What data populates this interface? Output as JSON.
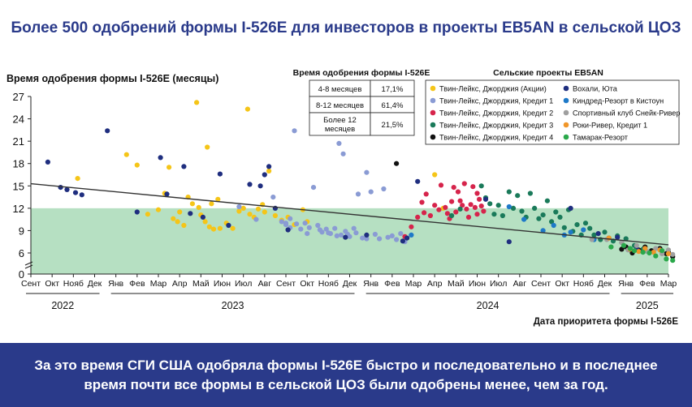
{
  "title": "Более 500 одобрений формы I-526E для инвесторов в проекты EB5AN в сельской ЦОЗ",
  "footer_text": "За это время СГИ США одобряла формы I-526E быстро и последовательно и в последнее время почти все формы в сельской ЦОЗ были одобрены менее, чем за год.",
  "colors": {
    "header_blue": "#2a3a8a",
    "shade": "#b6e0c2",
    "trend": "#333333"
  },
  "table": {
    "title": "Время одобрения формы I-526E",
    "rows": [
      {
        "label": "4-8 месяцев",
        "value": "17,1%"
      },
      {
        "label": "8-12 месяцев",
        "value": "61,4%"
      },
      {
        "label": "Более 12 месяцев",
        "value": "21,5%"
      }
    ]
  },
  "chart_data": {
    "type": "scatter",
    "ylabel": "Время одобрения формы I-526E (месяцы)",
    "xlabel": "Дата приоритета формы I-526E",
    "legend_title": "Сельские проекты EB5AN",
    "legend_position": "top-right",
    "yticks": [
      0,
      6,
      9,
      12,
      15,
      18,
      21,
      24,
      27
    ],
    "ylim": [
      4,
      27
    ],
    "axis_break": true,
    "shaded_band": [
      4,
      12
    ],
    "months": [
      "Сент",
      "Окт",
      "Нояб",
      "Дек",
      "Янв",
      "Фев",
      "Мар",
      "Апр",
      "Май",
      "Июн",
      "Июл",
      "Авг",
      "Сент",
      "Окт",
      "Нояб",
      "Дек",
      "Янв",
      "Фев",
      "Мар",
      "Апр",
      "Май",
      "Июн",
      "Июл",
      "Авг",
      "Сент",
      "Окт",
      "Нояб",
      "Дек",
      "Янв",
      "Фев",
      "Мар"
    ],
    "years": [
      {
        "label": "2022",
        "from": 0,
        "to": 3
      },
      {
        "label": "2023",
        "from": 4,
        "to": 15
      },
      {
        "label": "2024",
        "from": 16,
        "to": 27
      },
      {
        "label": "2025",
        "from": 28,
        "to": 30
      }
    ],
    "trend": {
      "x": [
        0.0,
        30.0
      ],
      "y": [
        15.3,
        7.1
      ]
    },
    "series": [
      {
        "name": "Твин-Лейкс, Джорджия (Акции)",
        "color": "#f5c518",
        "points": [
          [
            2.2,
            16
          ],
          [
            4.5,
            19.2
          ],
          [
            5.0,
            17.8
          ],
          [
            5.5,
            11.2
          ],
          [
            6.0,
            11.8
          ],
          [
            6.3,
            14.0
          ],
          [
            6.5,
            17.5
          ],
          [
            6.7,
            10.6
          ],
          [
            6.9,
            10.2
          ],
          [
            7.0,
            11.5
          ],
          [
            7.2,
            9.7
          ],
          [
            7.4,
            13.5
          ],
          [
            7.6,
            12.6
          ],
          [
            7.8,
            26.2
          ],
          [
            7.9,
            12.1
          ],
          [
            8.0,
            11.1
          ],
          [
            8.2,
            10.2
          ],
          [
            8.3,
            20.2
          ],
          [
            8.4,
            9.5
          ],
          [
            8.5,
            12.6
          ],
          [
            8.6,
            9.2
          ],
          [
            8.8,
            13.2
          ],
          [
            8.9,
            9.3
          ],
          [
            9.2,
            10.0
          ],
          [
            9.5,
            9.3
          ],
          [
            9.8,
            11.6
          ],
          [
            10.0,
            12.0
          ],
          [
            10.2,
            25.3
          ],
          [
            10.3,
            11.2
          ],
          [
            10.5,
            10.8
          ],
          [
            10.7,
            11.9
          ],
          [
            10.9,
            12.5
          ],
          [
            11.0,
            11.5
          ],
          [
            11.2,
            17.0
          ],
          [
            11.5,
            11.0
          ],
          [
            11.8,
            10.4
          ],
          [
            12.1,
            10.8
          ],
          [
            12.4,
            9.8
          ],
          [
            12.8,
            11.8
          ],
          [
            13.0,
            10.2
          ],
          [
            19.0,
            16.5
          ],
          [
            19.4,
            12.0
          ]
        ]
      },
      {
        "name": "Твин-Лейкс, Джорджия, Кредит 1",
        "color": "#8a9bd4",
        "points": [
          [
            9.8,
            12.2
          ],
          [
            10.6,
            10.5
          ],
          [
            11.4,
            13.5
          ],
          [
            11.8,
            10.2
          ],
          [
            12.0,
            9.8
          ],
          [
            12.2,
            10.6
          ],
          [
            12.4,
            22.4
          ],
          [
            12.5,
            9.9
          ],
          [
            12.7,
            9.2
          ],
          [
            12.9,
            10.0
          ],
          [
            13.1,
            9.4
          ],
          [
            13.3,
            14.8
          ],
          [
            13.5,
            9.7
          ],
          [
            13.7,
            8.8
          ],
          [
            13.9,
            9.2
          ],
          [
            14.1,
            8.6
          ],
          [
            14.3,
            9.3
          ],
          [
            14.5,
            20.7
          ],
          [
            14.6,
            8.4
          ],
          [
            14.7,
            19.3
          ],
          [
            14.8,
            8.9
          ],
          [
            15.0,
            8.2
          ],
          [
            15.2,
            9.3
          ],
          [
            15.4,
            13.9
          ],
          [
            15.6,
            8.0
          ],
          [
            15.8,
            16.8
          ],
          [
            16.0,
            14.2
          ],
          [
            16.2,
            8.5
          ],
          [
            16.4,
            7.9
          ],
          [
            16.6,
            14.6
          ],
          [
            16.8,
            8.1
          ],
          [
            17.0,
            8.3
          ],
          [
            17.2,
            7.8
          ],
          [
            17.4,
            8.6
          ],
          [
            17.6,
            7.5
          ],
          [
            12.0,
            10.0
          ],
          [
            12.2,
            9.4
          ],
          [
            13.0,
            8.6
          ],
          [
            13.6,
            9.1
          ],
          [
            14.0,
            8.7
          ],
          [
            14.4,
            8.3
          ],
          [
            14.9,
            8.5
          ],
          [
            15.3,
            8.7
          ],
          [
            15.8,
            7.9
          ]
        ]
      },
      {
        "name": "Твин-Лейкс, Джорджия, Кредит 2",
        "color": "#d6244b",
        "points": [
          [
            17.6,
            8.2
          ],
          [
            17.9,
            9.5
          ],
          [
            18.2,
            10.8
          ],
          [
            18.4,
            12.8
          ],
          [
            18.5,
            11.4
          ],
          [
            18.6,
            13.9
          ],
          [
            18.8,
            11.0
          ],
          [
            19.0,
            12.4
          ],
          [
            19.2,
            11.8
          ],
          [
            19.3,
            15.1
          ],
          [
            19.5,
            12.1
          ],
          [
            19.6,
            11.3
          ],
          [
            19.7,
            10.6
          ],
          [
            19.8,
            12.9
          ],
          [
            19.9,
            14.8
          ],
          [
            20.0,
            11.5
          ],
          [
            20.1,
            14.2
          ],
          [
            20.2,
            13.0
          ],
          [
            20.3,
            12.4
          ],
          [
            20.4,
            15.3
          ],
          [
            20.5,
            11.9
          ],
          [
            20.6,
            10.8
          ],
          [
            20.7,
            12.5
          ],
          [
            20.8,
            14.9
          ],
          [
            20.9,
            12.1
          ],
          [
            21.0,
            11.2
          ],
          [
            21.1,
            13.2
          ],
          [
            21.2,
            12.3
          ],
          [
            21.3,
            11.6
          ],
          [
            21.0,
            14.0
          ]
        ]
      },
      {
        "name": "Твин-Лейкс, Джорджия, Кредит 3",
        "color": "#1a7a5a",
        "points": [
          [
            19.8,
            11.0
          ],
          [
            20.2,
            11.9
          ],
          [
            21.2,
            15.0
          ],
          [
            21.4,
            13.4
          ],
          [
            21.6,
            12.6
          ],
          [
            21.8,
            11.2
          ],
          [
            22.0,
            12.4
          ],
          [
            22.2,
            11.0
          ],
          [
            22.5,
            14.2
          ],
          [
            22.7,
            12.0
          ],
          [
            22.9,
            13.7
          ],
          [
            23.1,
            11.6
          ],
          [
            23.3,
            10.8
          ],
          [
            23.5,
            14.0
          ],
          [
            23.7,
            12.0
          ],
          [
            23.9,
            10.6
          ],
          [
            24.1,
            11.1
          ],
          [
            24.3,
            13.0
          ],
          [
            24.5,
            10.2
          ],
          [
            24.7,
            11.5
          ],
          [
            24.9,
            10.8
          ],
          [
            25.1,
            9.4
          ],
          [
            25.3,
            11.8
          ],
          [
            25.5,
            8.9
          ],
          [
            25.7,
            9.8
          ],
          [
            25.9,
            8.4
          ],
          [
            26.1,
            10.0
          ],
          [
            26.3,
            9.3
          ],
          [
            26.5,
            8.4
          ],
          [
            26.8,
            7.8
          ],
          [
            27.0,
            8.8
          ],
          [
            27.2,
            8.0
          ],
          [
            27.4,
            7.6
          ],
          [
            27.6,
            8.3
          ],
          [
            27.8,
            7.4
          ],
          [
            28.0,
            7.9
          ],
          [
            28.4,
            7.0
          ],
          [
            28.8,
            6.5
          ]
        ]
      },
      {
        "name": "Твин-Лейкс, Джорджия, Кредит 4",
        "color": "#111111",
        "points": [
          [
            17.2,
            18.0
          ],
          [
            28.0,
            6.8
          ],
          [
            28.6,
            6.4
          ],
          [
            28.9,
            6.8
          ],
          [
            29.2,
            6.3
          ],
          [
            29.6,
            6.6
          ],
          [
            29.9,
            5.9
          ],
          [
            30.2,
            5.5
          ],
          [
            30.0,
            6.1
          ],
          [
            28.3,
            6.0
          ],
          [
            27.8,
            6.5
          ]
        ]
      },
      {
        "name": "Вохали, Юта",
        "color": "#1f2e7f",
        "points": [
          [
            0.8,
            18.2
          ],
          [
            1.4,
            14.8
          ],
          [
            1.7,
            14.5
          ],
          [
            2.1,
            14.1
          ],
          [
            2.4,
            13.8
          ],
          [
            3.6,
            22.4
          ],
          [
            5.0,
            11.5
          ],
          [
            6.1,
            18.8
          ],
          [
            6.4,
            13.9
          ],
          [
            7.2,
            17.6
          ],
          [
            7.5,
            11.3
          ],
          [
            8.1,
            10.8
          ],
          [
            8.9,
            16.6
          ],
          [
            9.3,
            9.7
          ],
          [
            10.3,
            15.2
          ],
          [
            10.8,
            15.0
          ],
          [
            11.0,
            16.5
          ],
          [
            11.2,
            17.6
          ],
          [
            11.5,
            12.0
          ],
          [
            12.1,
            9.1
          ],
          [
            14.8,
            8.1
          ],
          [
            15.8,
            8.4
          ],
          [
            17.5,
            7.6
          ],
          [
            17.7,
            8.0
          ],
          [
            18.2,
            15.6
          ],
          [
            21.4,
            13.2
          ],
          [
            22.5,
            7.5
          ],
          [
            25.4,
            12.0
          ],
          [
            26.7,
            8.6
          ],
          [
            27.6,
            8.1
          ],
          [
            28.5,
            6.5
          ]
        ]
      },
      {
        "name": "Киндред-Резорт в Кистоун",
        "color": "#1e79c8",
        "points": [
          [
            17.9,
            8.4
          ],
          [
            22.5,
            12.2
          ],
          [
            23.2,
            10.5
          ],
          [
            24.1,
            9.0
          ],
          [
            24.6,
            9.7
          ],
          [
            25.1,
            8.4
          ],
          [
            25.4,
            8.8
          ],
          [
            26.0,
            9.1
          ],
          [
            26.5,
            7.8
          ]
        ]
      },
      {
        "name": "Спортивный клуб Снейк-Ривер",
        "color": "#9f9f9f",
        "points": [
          [
            26.4,
            7.8
          ],
          [
            27.1,
            7.8
          ],
          [
            27.8,
            7.4
          ],
          [
            28.1,
            6.4
          ],
          [
            28.5,
            7.0
          ],
          [
            29.0,
            6.2
          ],
          [
            29.4,
            6.6
          ],
          [
            29.7,
            5.9
          ],
          [
            30.0,
            6.4
          ],
          [
            30.2,
            5.8
          ]
        ]
      },
      {
        "name": "Роки-Ривер, Кредит 1",
        "color": "#f0962a",
        "points": [
          [
            27.2,
            8.0
          ],
          [
            28.2,
            6.5
          ],
          [
            28.6,
            6.2
          ],
          [
            28.9,
            6.6
          ],
          [
            29.3,
            6.1
          ],
          [
            29.6,
            6.4
          ],
          [
            30.0,
            5.9
          ]
        ]
      },
      {
        "name": "Тамарак-Резорт",
        "color": "#2aa84a",
        "points": [
          [
            27.3,
            6.8
          ],
          [
            27.9,
            7.0
          ],
          [
            28.4,
            6.3
          ],
          [
            28.8,
            6.1
          ],
          [
            29.1,
            6.0
          ],
          [
            29.4,
            5.6
          ],
          [
            29.7,
            6.3
          ],
          [
            29.9,
            5.2
          ],
          [
            30.2,
            5.0
          ],
          [
            28.2,
            6.6
          ]
        ]
      }
    ]
  }
}
